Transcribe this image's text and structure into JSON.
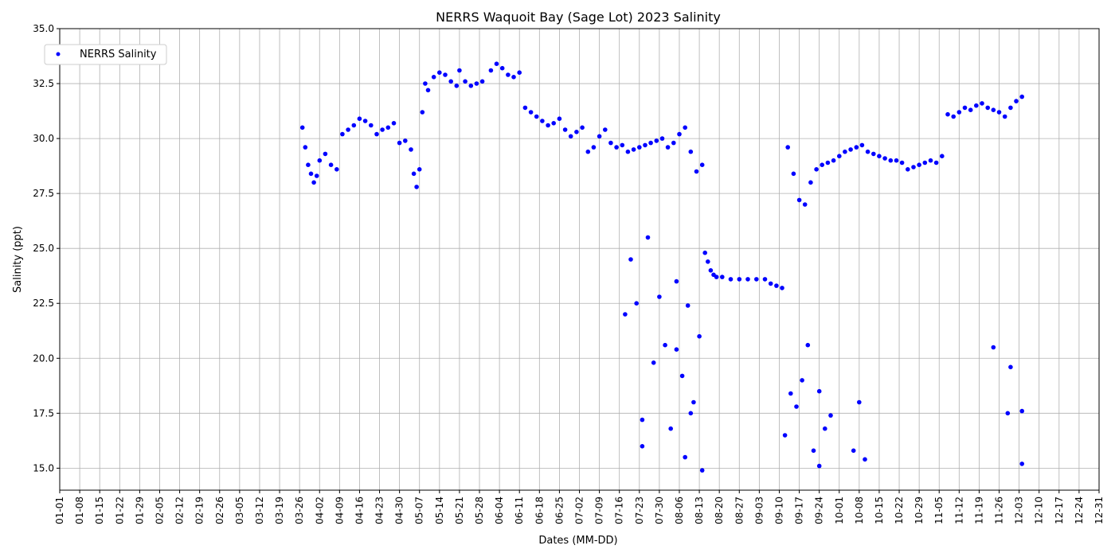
{
  "chart_data": {
    "type": "scatter",
    "title": "NERRS Waquoit Bay (Sage Lot) 2023 Salinity",
    "xlabel": "Dates (MM-DD)",
    "ylabel": "Salinity (ppt)",
    "xlim": [
      "2023-01-01",
      "2023-12-31"
    ],
    "ylim": [
      14.0,
      35.0
    ],
    "grid": true,
    "legend_position": "top-left",
    "x_tick_labels": [
      "01-01",
      "01-08",
      "01-15",
      "01-22",
      "01-29",
      "02-05",
      "02-12",
      "02-19",
      "02-26",
      "03-05",
      "03-12",
      "03-19",
      "03-26",
      "04-02",
      "04-09",
      "04-16",
      "04-23",
      "04-30",
      "05-07",
      "05-14",
      "05-21",
      "05-28",
      "06-04",
      "06-11",
      "06-18",
      "06-25",
      "07-02",
      "07-09",
      "07-16",
      "07-23",
      "07-30",
      "08-06",
      "08-13",
      "08-20",
      "08-27",
      "09-03",
      "09-10",
      "09-17",
      "09-24",
      "10-01",
      "10-08",
      "10-15",
      "10-22",
      "10-29",
      "11-05",
      "11-12",
      "11-19",
      "11-26",
      "12-03",
      "12-10",
      "12-17",
      "12-24",
      "12-31"
    ],
    "y_ticks": [
      15.0,
      17.5,
      20.0,
      22.5,
      25.0,
      27.5,
      30.0,
      32.5,
      35.0
    ],
    "series": [
      {
        "name": "NERRS Salinity",
        "color": "#0000ff",
        "marker": "dot",
        "x": [
          "2023-03-27",
          "2023-03-28",
          "2023-03-29",
          "2023-03-30",
          "2023-03-31",
          "2023-04-01",
          "2023-04-02",
          "2023-04-04",
          "2023-04-06",
          "2023-04-08",
          "2023-04-10",
          "2023-04-12",
          "2023-04-14",
          "2023-04-16",
          "2023-04-18",
          "2023-04-20",
          "2023-04-22",
          "2023-04-24",
          "2023-04-26",
          "2023-04-28",
          "2023-04-30",
          "2023-05-02",
          "2023-05-04",
          "2023-05-05",
          "2023-05-06",
          "2023-05-07",
          "2023-05-08",
          "2023-05-09",
          "2023-05-10",
          "2023-05-12",
          "2023-05-14",
          "2023-05-16",
          "2023-05-18",
          "2023-05-20",
          "2023-05-21",
          "2023-05-23",
          "2023-05-25",
          "2023-05-27",
          "2023-05-29",
          "2023-06-01",
          "2023-06-03",
          "2023-06-05",
          "2023-06-07",
          "2023-06-09",
          "2023-06-11",
          "2023-06-13",
          "2023-06-15",
          "2023-06-17",
          "2023-06-19",
          "2023-06-21",
          "2023-06-23",
          "2023-06-25",
          "2023-06-27",
          "2023-06-29",
          "2023-07-01",
          "2023-07-03",
          "2023-07-05",
          "2023-07-07",
          "2023-07-09",
          "2023-07-11",
          "2023-07-13",
          "2023-07-15",
          "2023-07-17",
          "2023-07-19",
          "2023-07-21",
          "2023-07-23",
          "2023-07-25",
          "2023-07-27",
          "2023-07-29",
          "2023-07-31",
          "2023-08-02",
          "2023-08-04",
          "2023-08-06",
          "2023-08-08",
          "2023-08-10",
          "2023-08-12",
          "2023-08-14",
          "2023-08-15",
          "2023-08-16",
          "2023-08-17",
          "2023-08-18",
          "2023-08-19",
          "2023-08-21",
          "2023-08-24",
          "2023-08-27",
          "2023-08-30",
          "2023-09-02",
          "2023-09-05",
          "2023-09-07",
          "2023-09-09",
          "2023-09-11",
          "2023-09-13",
          "2023-09-15",
          "2023-09-17",
          "2023-09-19",
          "2023-09-21",
          "2023-09-23",
          "2023-09-25",
          "2023-09-27",
          "2023-09-29",
          "2023-10-01",
          "2023-10-03",
          "2023-10-05",
          "2023-10-07",
          "2023-10-09",
          "2023-10-11",
          "2023-10-13",
          "2023-10-15",
          "2023-10-17",
          "2023-10-19",
          "2023-10-21",
          "2023-10-23",
          "2023-10-25",
          "2023-10-27",
          "2023-10-29",
          "2023-10-31",
          "2023-11-02",
          "2023-11-04",
          "2023-11-06",
          "2023-11-08",
          "2023-11-10",
          "2023-11-12",
          "2023-11-14",
          "2023-11-16",
          "2023-11-18",
          "2023-11-20",
          "2023-11-22",
          "2023-11-24",
          "2023-11-26",
          "2023-11-28",
          "2023-11-30",
          "2023-12-02",
          "2023-12-04",
          "2023-07-22",
          "2023-07-24",
          "2023-07-26",
          "2023-07-28",
          "2023-07-30",
          "2023-08-01",
          "2023-08-03",
          "2023-08-05",
          "2023-08-07",
          "2023-08-09",
          "2023-08-11",
          "2023-08-13",
          "2023-07-20",
          "2023-07-18",
          "2023-08-08",
          "2023-08-10",
          "2023-09-12",
          "2023-09-14",
          "2023-09-16",
          "2023-09-18",
          "2023-09-20",
          "2023-09-22",
          "2023-09-24",
          "2023-09-26",
          "2023-09-28",
          "2023-10-06",
          "2023-10-08",
          "2023-10-10",
          "2023-11-24",
          "2023-11-29",
          "2023-11-30",
          "2023-12-04",
          "2023-12-04",
          "2023-07-24",
          "2023-08-05",
          "2023-08-14",
          "2023-09-24"
        ],
        "y": [
          30.5,
          29.6,
          28.8,
          28.4,
          28.0,
          28.3,
          29.0,
          29.3,
          28.8,
          28.6,
          30.2,
          30.4,
          30.6,
          30.9,
          30.8,
          30.6,
          30.2,
          30.4,
          30.5,
          30.7,
          29.8,
          29.9,
          29.5,
          28.4,
          27.8,
          28.6,
          31.2,
          32.5,
          32.2,
          32.8,
          33.0,
          32.9,
          32.6,
          32.4,
          33.1,
          32.6,
          32.4,
          32.5,
          32.6,
          33.1,
          33.4,
          33.2,
          32.9,
          32.8,
          33.0,
          31.4,
          31.2,
          31.0,
          30.8,
          30.6,
          30.7,
          30.9,
          30.4,
          30.1,
          30.3,
          30.5,
          29.4,
          29.6,
          30.1,
          30.4,
          29.8,
          29.6,
          29.7,
          29.4,
          29.5,
          29.6,
          29.7,
          29.8,
          29.9,
          30.0,
          29.6,
          29.8,
          30.2,
          30.5,
          29.4,
          28.5,
          28.8,
          24.8,
          24.4,
          24.0,
          23.8,
          23.7,
          23.7,
          23.6,
          23.6,
          23.6,
          23.6,
          23.6,
          23.4,
          23.3,
          23.2,
          29.6,
          28.4,
          27.2,
          27.0,
          28.0,
          28.6,
          28.8,
          28.9,
          29.0,
          29.2,
          29.4,
          29.5,
          29.6,
          29.7,
          29.4,
          29.3,
          29.2,
          29.1,
          29.0,
          29.0,
          28.9,
          28.6,
          28.7,
          28.8,
          28.9,
          29.0,
          28.9,
          29.2,
          31.1,
          31.0,
          31.2,
          31.4,
          31.3,
          31.5,
          31.6,
          31.4,
          31.3,
          31.2,
          31.0,
          31.4,
          31.7,
          31.9,
          22.5,
          17.2,
          25.5,
          19.8,
          22.8,
          20.6,
          16.8,
          23.5,
          19.2,
          22.4,
          18.0,
          21.0,
          24.5,
          22.0,
          15.5,
          17.5,
          16.5,
          18.4,
          17.8,
          19.0,
          20.6,
          15.8,
          18.5,
          16.8,
          17.4,
          15.8,
          18.0,
          15.4,
          20.5,
          17.5,
          19.6,
          17.6,
          15.2,
          16.0,
          20.4,
          14.9,
          15.1
        ]
      }
    ]
  }
}
